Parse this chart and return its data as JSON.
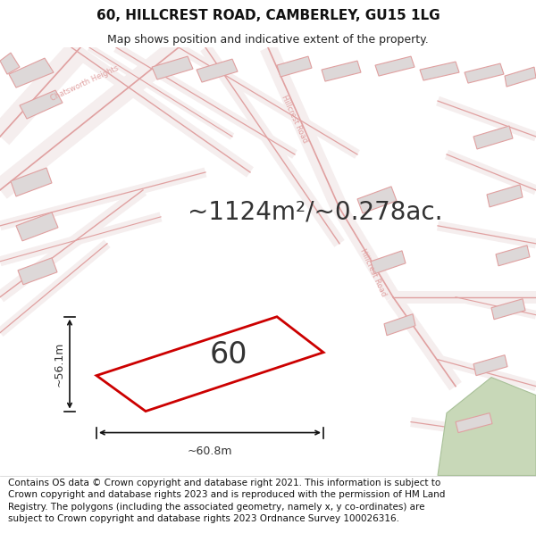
{
  "title_line1": "60, HILLCREST ROAD, CAMBERLEY, GU15 1LG",
  "title_line2": "Map shows position and indicative extent of the property.",
  "area_label": "~1124m²/~0.278ac.",
  "plot_number": "60",
  "dim_horizontal": "~60.8m",
  "dim_vertical": "~56.1m",
  "footer_text": "Contains OS data © Crown copyright and database right 2021. This information is subject to Crown copyright and database rights 2023 and is reproduced with the permission of HM Land Registry. The polygons (including the associated geometry, namely x, y co-ordinates) are subject to Crown copyright and database rights 2023 Ordnance Survey 100026316.",
  "map_bg": "#f2eeee",
  "road_color": "#e0a0a0",
  "road_fill": "#f5eeee",
  "building_fill": "#ddd8d8",
  "plot_color": "#cc0000",
  "green_color": "#c8d8b8",
  "green_edge": "#a8c098",
  "title_fontsize": 11,
  "subtitle_fontsize": 9,
  "area_fontsize": 20,
  "plot_number_fontsize": 24,
  "dim_fontsize": 9,
  "road_label_fontsize": 6,
  "footer_fontsize": 7.5
}
